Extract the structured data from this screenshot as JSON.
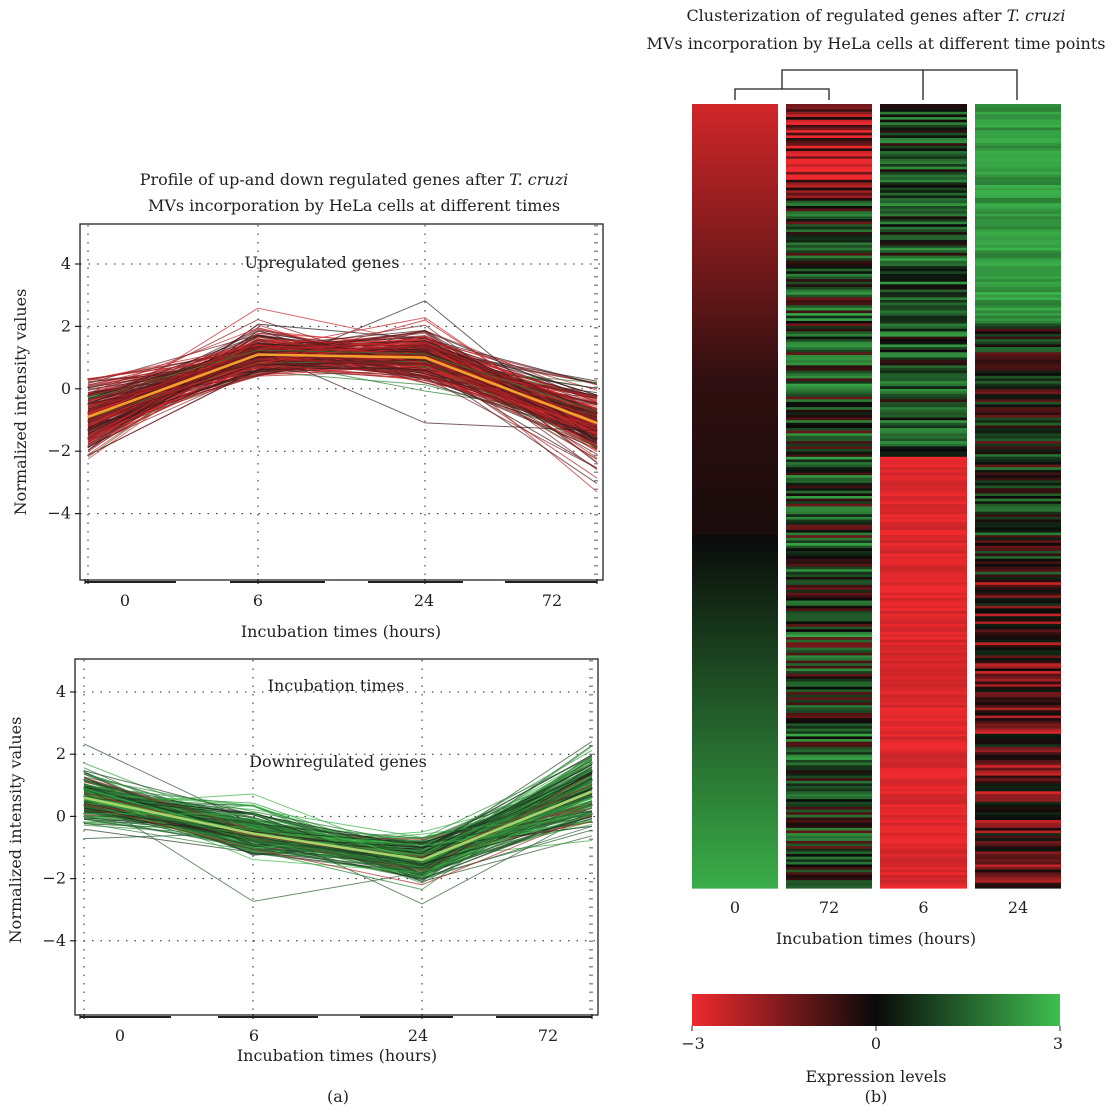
{
  "panel_a_label": "(a)",
  "panel_b_label": "(b)",
  "chart_data": [
    {
      "type": "line",
      "panel": "a-top",
      "title_line1": "Profile of up-and down regulated genes after",
      "title_italic": "T. cruzi",
      "title_line2": "MVs incorporation by HeLa cells at different times",
      "annotation": "Upregulated genes",
      "xlabel": "Incubation times (hours)",
      "ylabel": "Normalized intensity values",
      "categories": [
        "0",
        "6",
        "24",
        "72"
      ],
      "yticks": [
        4,
        2,
        0,
        -2,
        -4
      ],
      "yticklabels": [
        "4",
        "2",
        "0",
        "−2",
        "−4"
      ],
      "ylim": [
        -5.8,
        5.4
      ],
      "grid": "dotted",
      "colors": {
        "genes_high": "#e8262b",
        "genes_low": "#1a1a1a",
        "genes_green": "#2e7d32",
        "mean": "#f2a12b"
      },
      "mean_profile": [
        -0.9,
        1.1,
        1.0,
        -1.1
      ],
      "spread": [
        0.8,
        0.55,
        0.55,
        0.9
      ],
      "n_genes": 260
    },
    {
      "type": "line",
      "panel": "a-bottom",
      "annotation_top": "Incubation times",
      "annotation": "Downregulated genes",
      "xlabel": "Incubation times (hours)",
      "ylabel": "Normalized intensity values",
      "categories": [
        "0",
        "6",
        "24",
        "72"
      ],
      "yticks": [
        4,
        2,
        0,
        -2,
        -4
      ],
      "yticklabels": [
        "4",
        "2",
        "0",
        "−2",
        "−4"
      ],
      "ylim": [
        -5.8,
        5.3
      ],
      "grid": "dotted",
      "colors": {
        "genes_high": "#3cbf4a",
        "genes_low": "#1a1a1a",
        "genes_red": "#b02a2a",
        "mean": "#a8d26b"
      },
      "mean_profile": [
        0.6,
        -0.55,
        -1.4,
        0.8
      ],
      "spread": [
        0.55,
        0.55,
        0.5,
        0.9
      ],
      "n_genes": 220
    },
    {
      "type": "heatmap",
      "panel": "b",
      "title_line1": "Clusterization of regulated genes after",
      "title_italic": "T. cruzi",
      "title_line2": "MVs incorporation by HeLa cells at different time points",
      "columns": [
        "0",
        "72",
        "6",
        "24"
      ],
      "xlabel": "Incubation times (hours)",
      "colorbar_label": "Expression levels",
      "colorbar_ticks": [
        "−3",
        "0",
        "3"
      ],
      "colorbar_range": [
        -3,
        3
      ],
      "colors": {
        "low": "#ee2a2e",
        "mid": "#0a0a0a",
        "high": "#3fbe4f"
      },
      "n_rows": 300
    }
  ]
}
